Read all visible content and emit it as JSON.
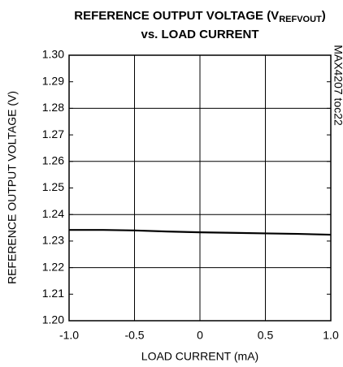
{
  "chart_data": {
    "type": "line",
    "title": [
      "REFERENCE OUTPUT VOLTAGE (V",
      "REFVOUT",
      ")",
      "vs. LOAD CURRENT"
    ],
    "annotation": "MAX4207 toc22",
    "xlabel": "LOAD CURRENT (mA)",
    "ylabel": "REFERENCE OUTPUT VOLTAGE (V)",
    "x": [
      -1.0,
      -0.75,
      -0.5,
      -0.25,
      0,
      0.25,
      0.5,
      0.75,
      1.0
    ],
    "series": [
      {
        "color": "#000000",
        "values": [
          1.2342,
          1.2342,
          1.234,
          1.2336,
          1.2333,
          1.2331,
          1.2329,
          1.2327,
          1.2324
        ]
      }
    ],
    "xlim": [
      -1,
      1
    ],
    "xticks": [
      {
        "value": -1,
        "label": "-1.0"
      },
      -0.5,
      0,
      0.5,
      {
        "value": 1,
        "label": "1.0"
      }
    ],
    "ylim": [
      1.2,
      1.3
    ],
    "yticks": [
      {
        "value": 1.2,
        "label": "1.20"
      },
      1.21,
      1.22,
      1.23,
      1.24,
      1.25,
      1.26,
      1.27,
      1.28,
      1.29,
      {
        "value": 1.3,
        "label": "1.30"
      }
    ],
    "xgrid": [
      -0.5,
      0,
      0.5
    ],
    "ygrid": [
      1.22,
      1.24,
      1.26,
      1.28
    ]
  }
}
